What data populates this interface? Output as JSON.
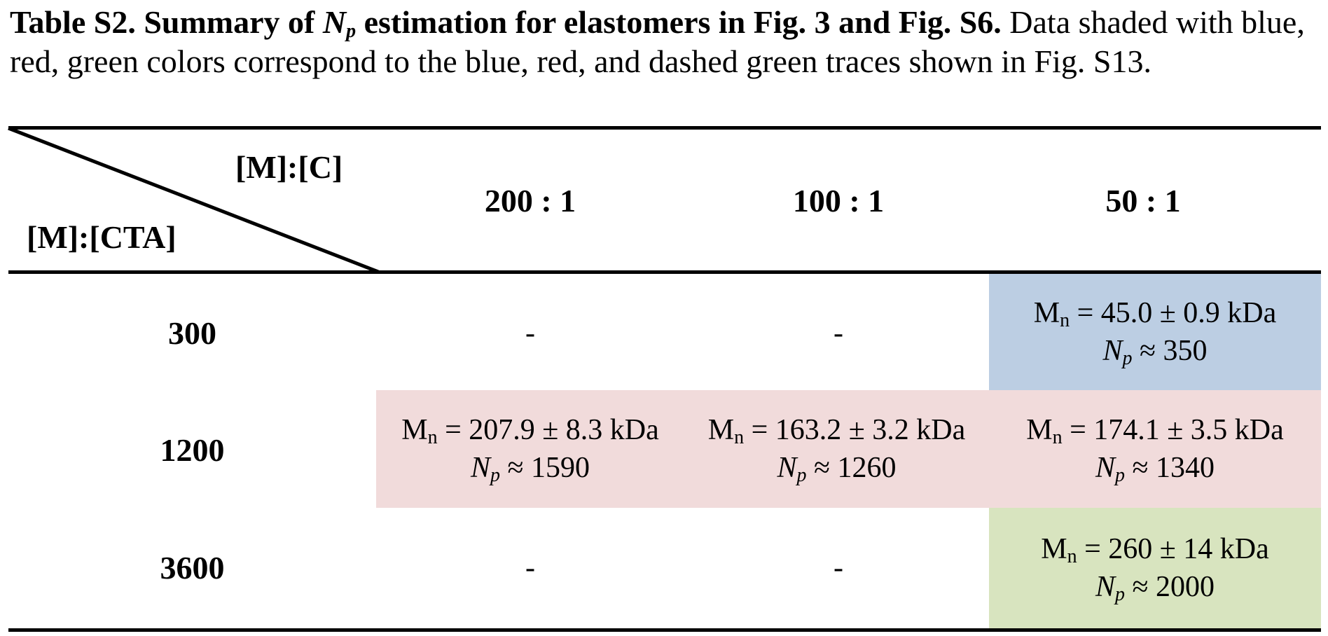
{
  "caption": {
    "bold_prefix": "Table S2. Summary of ",
    "bold_sym": "N",
    "bold_sub": "p",
    "bold_suffix": " estimation for elastomers in Fig. 3 and Fig. S6.",
    "text": " Data shaded with blue, red, green colors correspond to the blue, red, and dashed green traces shown in Fig. S13."
  },
  "header": {
    "corner_top": "[M]:[C]",
    "corner_bottom": "[M]:[CTA]",
    "columns": [
      "200 : 1",
      "100 : 1",
      "50 : 1"
    ]
  },
  "rows": [
    {
      "label": "300",
      "cells": [
        {
          "dash": "-"
        },
        {
          "dash": "-"
        },
        {
          "mn_sym": "M",
          "mn_sub": "n",
          "mn_val": " = 45.0 ± 0.9 kDa",
          "np_sym": "N",
          "np_sub": "p",
          "np_val": " ≈ 350",
          "shade": "#bccee3"
        }
      ]
    },
    {
      "label": "1200",
      "cells": [
        {
          "mn_sym": "M",
          "mn_sub": "n",
          "mn_val": " = 207.9 ± 8.3 kDa",
          "np_sym": "N",
          "np_sub": "p",
          "np_val": " ≈ 1590",
          "shade": "#f1dbdb"
        },
        {
          "mn_sym": "M",
          "mn_sub": "n",
          "mn_val": " = 163.2 ± 3.2 kDa",
          "np_sym": "N",
          "np_sub": "p",
          "np_val": " ≈ 1260",
          "shade": "#f1dbdb"
        },
        {
          "mn_sym": "M",
          "mn_sub": "n",
          "mn_val": " = 174.1 ± 3.5 kDa",
          "np_sym": "N",
          "np_sub": "p",
          "np_val": " ≈ 1340",
          "shade": "#f1dbdb"
        }
      ]
    },
    {
      "label": "3600",
      "cells": [
        {
          "dash": "-"
        },
        {
          "dash": "-"
        },
        {
          "mn_sym": "M",
          "mn_sub": "n",
          "mn_val": " = 260 ± 14 kDa",
          "np_sym": "N",
          "np_sub": "p",
          "np_val": " ≈ 2000",
          "shade": "#d8e4bf"
        }
      ]
    }
  ]
}
